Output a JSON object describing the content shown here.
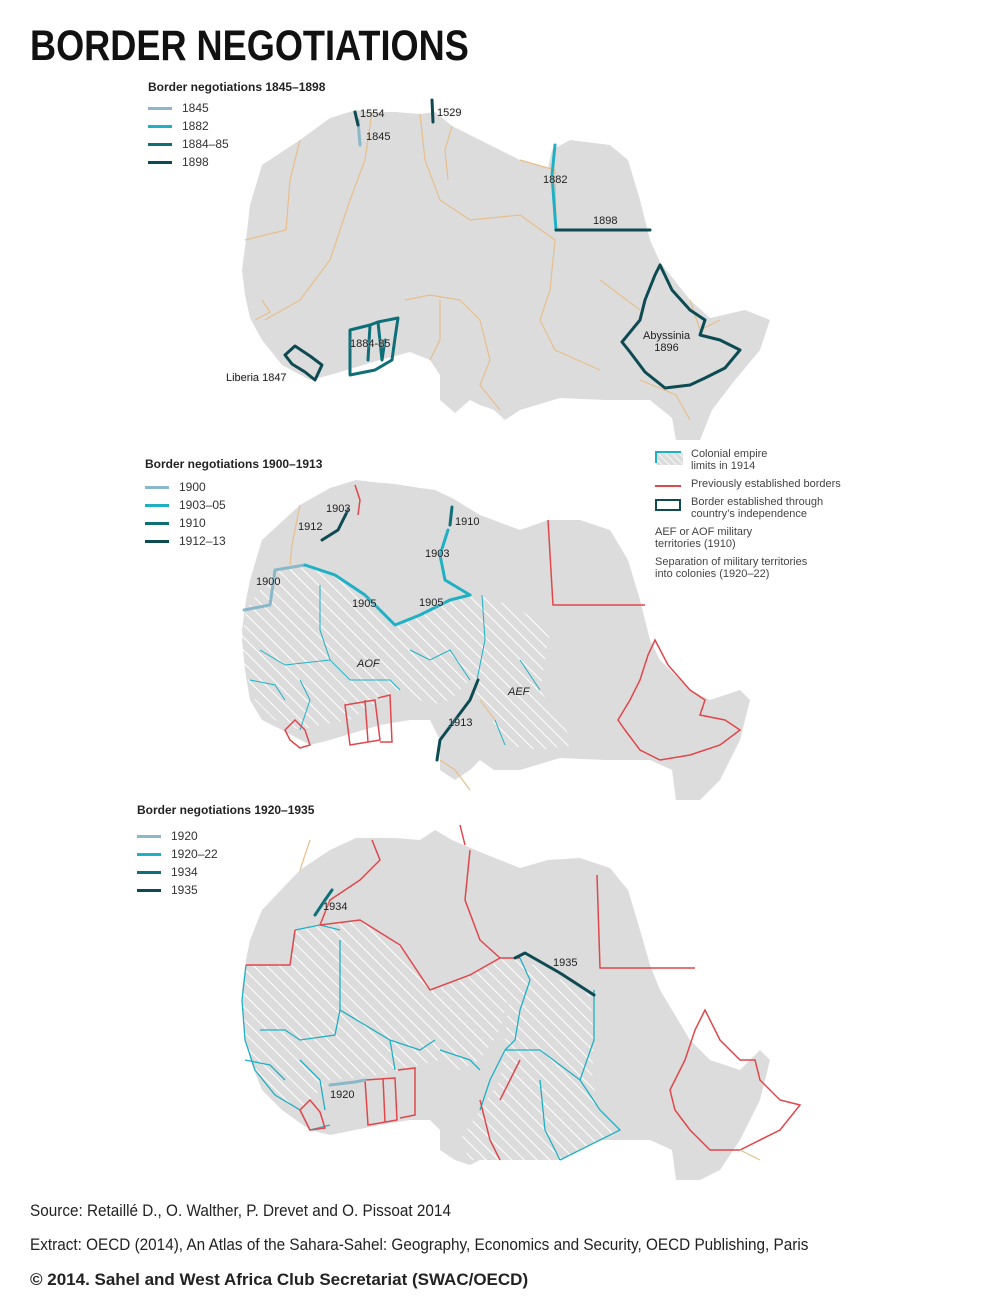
{
  "title": "BORDER NEGOTIATIONS",
  "colors": {
    "land": "#dcdcdc",
    "colonial_limits": "#e6bf8c",
    "previous_borders": "#e0474c",
    "independence_border": "#0d4a52",
    "teal_dark": "#0f6f78",
    "teal_mid": "#1fb0c4",
    "teal_light": "#8ab8c8",
    "hatch": "#ffffff"
  },
  "panels": [
    {
      "title": "Border negotiations 1845–1898",
      "legend": [
        {
          "label": "1845",
          "color": "#8ab8c8"
        },
        {
          "label": "1882",
          "color": "#1fb0c4"
        },
        {
          "label": "1884–85",
          "color": "#0f6f78"
        },
        {
          "label": "1898",
          "color": "#0d4a52"
        }
      ],
      "labels": [
        "1554",
        "1529",
        "1845",
        "1882",
        "1898",
        "Abyssinia\n1896",
        "1884-85",
        "Liberia 1847"
      ]
    },
    {
      "title": "Border negotiations 1900–1913",
      "legend": [
        {
          "label": "1900",
          "color": "#8ab8c8"
        },
        {
          "label": "1903–05",
          "color": "#1fb0c4"
        },
        {
          "label": "1910",
          "color": "#0f6f78"
        },
        {
          "label": "1912–13",
          "color": "#0d4a52"
        }
      ],
      "labels": [
        "1903",
        "1912",
        "1910",
        "1903",
        "1900",
        "1905",
        "1905",
        "AOF",
        "AEF",
        "1913"
      ]
    },
    {
      "title": "Border negotiations 1920–1935",
      "legend": [
        {
          "label": "1920",
          "color": "#8ab8c8"
        },
        {
          "label": "1920–22",
          "color": "#1fb0c4"
        },
        {
          "label": "1934",
          "color": "#0f6f78"
        },
        {
          "label": "1935",
          "color": "#0d4a52"
        }
      ],
      "labels": [
        "1934",
        "1935",
        "1920"
      ]
    }
  ],
  "key": [
    {
      "label": "Colonial empire\nlimits in 1914",
      "type": "line",
      "color": "#e6bf8c"
    },
    {
      "label": "Previously established borders",
      "type": "line",
      "color": "#e0474c"
    },
    {
      "label": "Border established through\ncountry’s independence",
      "type": "box",
      "color": "#0d4a52"
    },
    {
      "label": "AEF or AOF military\nterritories (1910)",
      "type": "hatch",
      "color": "#8ab8c8"
    },
    {
      "label": "Separation of military territories\ninto colonies (1920–22)",
      "type": "hatchbox",
      "color": "#1fb0c4"
    }
  ],
  "footer": {
    "source": "Source: Retaillé D., O. Walther, P. Drevet and O. Pissoat 2014",
    "extract": "Extract: OECD (2014), An Atlas of the Sahara-Sahel: Geography, Economics  and Security, OECD Publishing, Paris",
    "copyright": "© 2014. Sahel and West Africa Club Secretariat (SWAC/OECD)"
  }
}
